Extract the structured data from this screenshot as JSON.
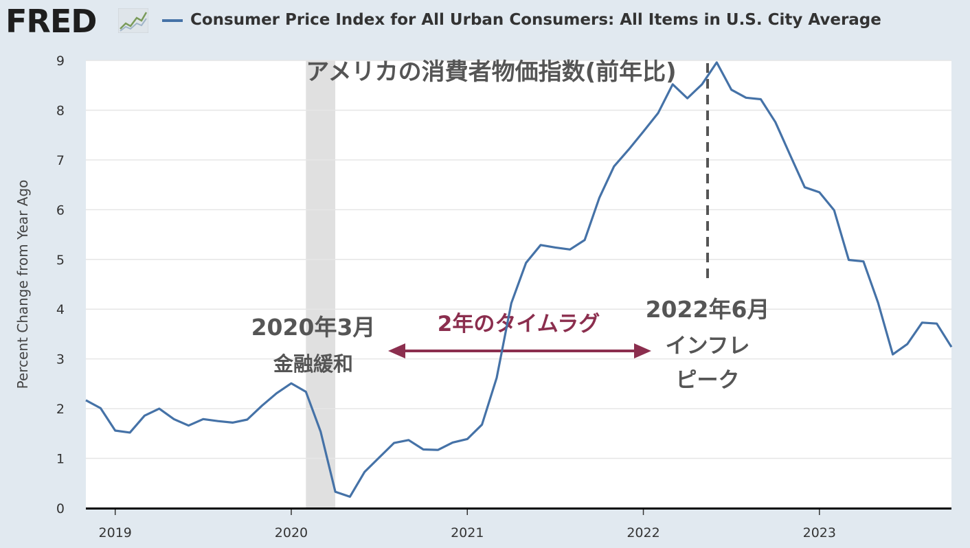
{
  "header": {
    "logo_text": "FRED",
    "logo_icon": "line-chart-icon",
    "series_title": "Consumer Price Index for All Urban Consumers: All Items in U.S. City Average"
  },
  "colors": {
    "series": "#4572a7",
    "background": "#e1e9f0",
    "plot_background": "#ffffff",
    "recession": "#e0e0e0",
    "arrow": "#8b2e4e",
    "annotation_text": "#555555",
    "dashed_line": "#555555"
  },
  "chart_data": {
    "type": "line",
    "title": "アメリカの消費者物価指数(前年比)",
    "xlabel": "",
    "ylabel": "Percent Change from Year Ago",
    "xlim": [
      "2018-11-01",
      "2023-10-01"
    ],
    "ylim": [
      0,
      9
    ],
    "y_ticks": [
      0,
      1,
      2,
      3,
      4,
      5,
      6,
      7,
      8,
      9
    ],
    "x_ticks": [
      "2019",
      "2020",
      "2021",
      "2022",
      "2023"
    ],
    "grid": true,
    "recession_band": [
      "2020-02-01",
      "2020-04-01"
    ],
    "series": [
      {
        "name": "Consumer Price Index for All Urban Consumers: All Items in U.S. City Average",
        "color": "#4572a7",
        "x": [
          "2018-11",
          "2018-12",
          "2019-01",
          "2019-02",
          "2019-03",
          "2019-04",
          "2019-05",
          "2019-06",
          "2019-07",
          "2019-08",
          "2019-09",
          "2019-10",
          "2019-11",
          "2019-12",
          "2020-01",
          "2020-02",
          "2020-03",
          "2020-04",
          "2020-05",
          "2020-06",
          "2020-07",
          "2020-08",
          "2020-09",
          "2020-10",
          "2020-11",
          "2020-12",
          "2021-01",
          "2021-02",
          "2021-03",
          "2021-04",
          "2021-05",
          "2021-06",
          "2021-07",
          "2021-08",
          "2021-09",
          "2021-10",
          "2021-11",
          "2021-12",
          "2022-01",
          "2022-02",
          "2022-03",
          "2022-04",
          "2022-05",
          "2022-06",
          "2022-07",
          "2022-08",
          "2022-09",
          "2022-10",
          "2022-11",
          "2022-12",
          "2023-01",
          "2023-02",
          "2023-03",
          "2023-04",
          "2023-05",
          "2023-06",
          "2023-07",
          "2023-08",
          "2023-09",
          "2023-10"
        ],
        "values": [
          2.17,
          2.01,
          1.56,
          1.52,
          1.86,
          2.0,
          1.79,
          1.66,
          1.79,
          1.75,
          1.72,
          1.78,
          2.06,
          2.31,
          2.51,
          2.34,
          1.54,
          0.33,
          0.23,
          0.73,
          1.02,
          1.31,
          1.37,
          1.18,
          1.17,
          1.32,
          1.39,
          1.68,
          2.62,
          4.12,
          4.93,
          5.29,
          5.24,
          5.2,
          5.39,
          6.24,
          6.87,
          7.21,
          7.57,
          7.94,
          8.52,
          8.24,
          8.52,
          8.96,
          8.41,
          8.25,
          8.22,
          7.76,
          7.1,
          6.45,
          6.35,
          5.99,
          4.99,
          4.96,
          4.13,
          3.09,
          3.3,
          3.73,
          3.71,
          3.24
        ]
      }
    ],
    "annotations": {
      "policy_date": "2020年3月",
      "policy_label": "金融緩和",
      "lag_label": "2年のタイムラグ",
      "peak_date": "2022年6月",
      "peak_label_1": "インフレ",
      "peak_label_2": "ピーク"
    }
  }
}
